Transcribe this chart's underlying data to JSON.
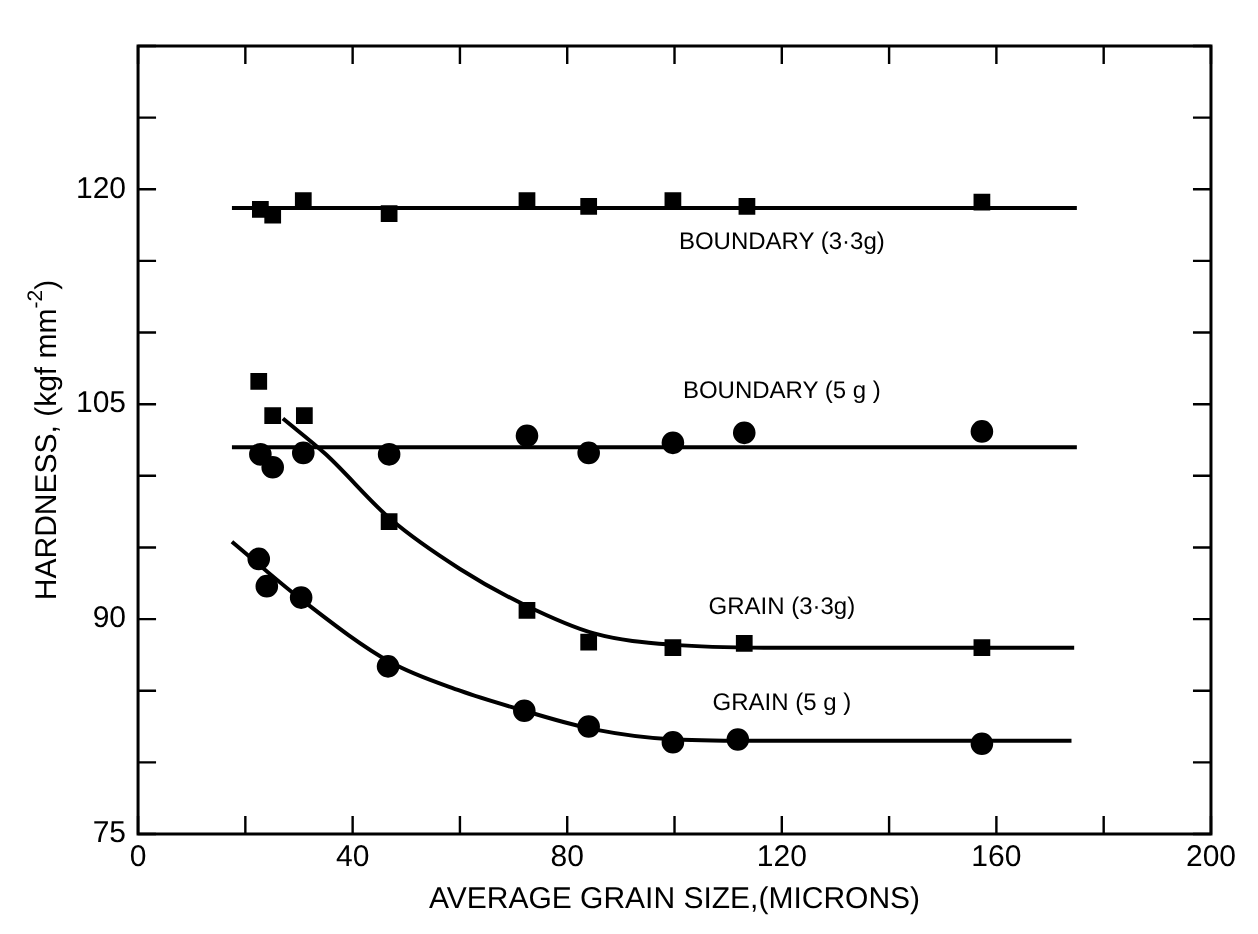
{
  "chart_data": {
    "type": "scatter",
    "xlabel": "AVERAGE GRAIN SIZE,(MICRONS)",
    "ylabel": "HARDNESS, (kgf mm$^{-2}$)",
    "xlim": [
      0,
      200
    ],
    "ylim": [
      75,
      130
    ],
    "xticks": [
      0,
      {
        "value": 20,
        "label": null
      },
      40,
      {
        "value": 60,
        "label": null
      },
      80,
      {
        "value": 100,
        "label": null
      },
      120,
      {
        "value": 140,
        "label": null
      },
      160,
      {
        "value": 180,
        "label": null
      },
      200
    ],
    "yticks": [
      75,
      {
        "value": 80,
        "label": null
      },
      {
        "value": 85,
        "label": null
      },
      90,
      {
        "value": 95,
        "label": null
      },
      {
        "value": 100,
        "label": null
      },
      105,
      {
        "value": 110,
        "label": null
      },
      {
        "value": 115,
        "label": null
      },
      120,
      {
        "value": 125,
        "label": null
      },
      {
        "value": 130,
        "label": null
      }
    ],
    "grid": false,
    "legend": false,
    "series": [
      {
        "type": "scatter",
        "name": "BOUNDARY (3·3g)",
        "marker": "square",
        "color": "#000000",
        "x": [
          22.8,
          25.1,
          30.8,
          46.8,
          72.5,
          84,
          99.7,
          113.5,
          157.3
        ],
        "values": [
          118.6,
          118.2,
          119.2,
          118.3,
          119.2,
          118.8,
          119.2,
          118.8,
          119.1
        ]
      },
      {
        "type": "scatter",
        "name": "BOUNDARY (5 g )",
        "marker": "circle",
        "color": "#000000",
        "x": [
          22.8,
          25.1,
          30.8,
          46.8,
          72.5,
          84,
          99.7,
          113,
          157.3
        ],
        "values": [
          101.5,
          100.6,
          101.6,
          101.5,
          102.8,
          101.6,
          102.3,
          103,
          103.1
        ]
      },
      {
        "type": "scatter",
        "name": "GRAIN (3·3g)",
        "marker": "square",
        "color": "#000000",
        "x": [
          22.5,
          25.1,
          31,
          46.8,
          72.5,
          84,
          99.7,
          113,
          157.3
        ],
        "values": [
          106.6,
          104.2,
          104.2,
          96.8,
          90.6,
          88.4,
          88.0,
          88.3,
          88.0
        ]
      },
      {
        "type": "scatter",
        "name": "GRAIN (5 g )",
        "marker": "circle",
        "color": "#000000",
        "x": [
          22.5,
          24,
          30.4,
          46.6,
          72,
          84,
          99.7,
          111.8,
          157.3
        ],
        "values": [
          94.2,
          92.3,
          91.5,
          86.7,
          83.6,
          82.5,
          81.4,
          81.6,
          81.3
        ]
      },
      {
        "type": "line",
        "marker": "none",
        "color": "#000000",
        "x": [
          17.5,
          175
        ],
        "values": [
          118.7,
          118.7
        ]
      },
      {
        "type": "line",
        "marker": "none",
        "color": "#000000",
        "x": [
          17.5,
          175
        ],
        "values": [
          102.0,
          102.0
        ]
      },
      {
        "type": "line",
        "marker": "none",
        "color": "#000000",
        "x": [
          27,
          35,
          47,
          60,
          72,
          85,
          100,
          120,
          174.5
        ],
        "values": [
          104,
          101.5,
          97,
          93.5,
          91,
          89,
          88.2,
          88.0,
          88
        ]
      },
      {
        "type": "line",
        "marker": "none",
        "color": "#000000",
        "x": [
          17.5,
          30,
          47,
          60,
          72,
          85,
          100,
          120,
          174
        ],
        "values": [
          95.4,
          91.5,
          87,
          85,
          83.6,
          82.3,
          81.6,
          81.5,
          81.5
        ]
      }
    ]
  }
}
